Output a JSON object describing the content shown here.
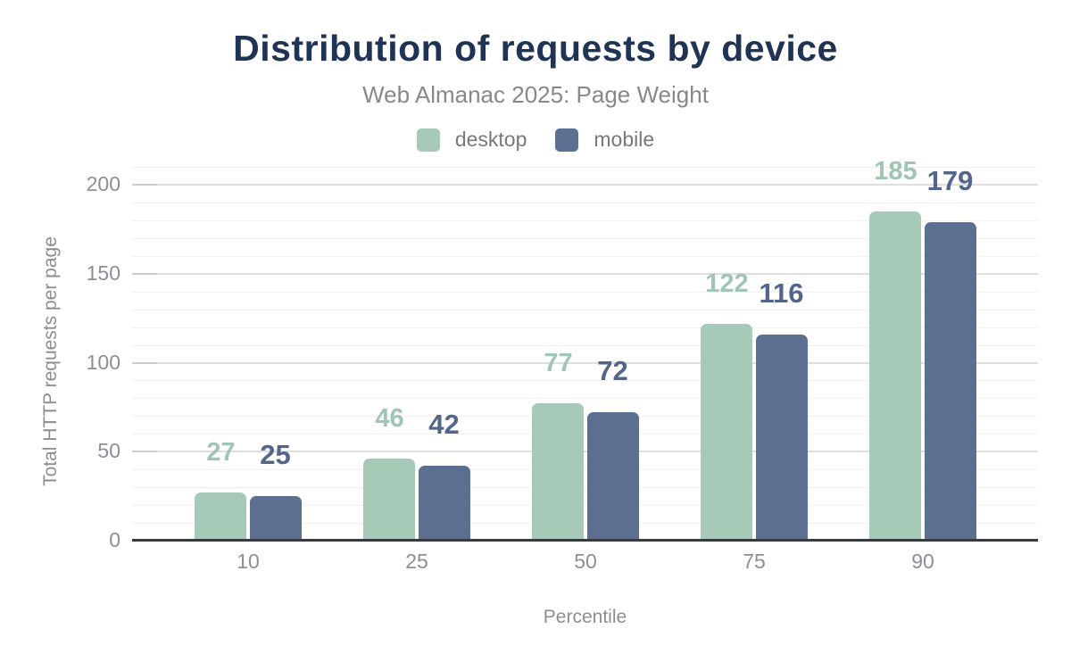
{
  "chart_data": {
    "type": "bar",
    "title": "Distribution of requests by device",
    "subtitle": "Web Almanac 2025: Page Weight",
    "xlabel": "Percentile",
    "ylabel": "Total HTTP requests per page",
    "categories": [
      "10",
      "25",
      "50",
      "75",
      "90"
    ],
    "series": [
      {
        "name": "desktop",
        "color": "#a7cab8",
        "label_color": "#a0c6b3",
        "values": [
          27,
          46,
          77,
          122,
          185
        ]
      },
      {
        "name": "mobile",
        "color": "#5d6f90",
        "label_color": "#53658a",
        "values": [
          25,
          42,
          72,
          116,
          179
        ]
      }
    ],
    "y_ticks": [
      0,
      50,
      100,
      150,
      200
    ],
    "ylim": [
      0,
      200
    ],
    "minor_grid_step": 10,
    "grid": true,
    "legend_position": "top",
    "data_labels": true,
    "title_color": "#1f3355",
    "axis_text_color": "#8b8f96"
  }
}
